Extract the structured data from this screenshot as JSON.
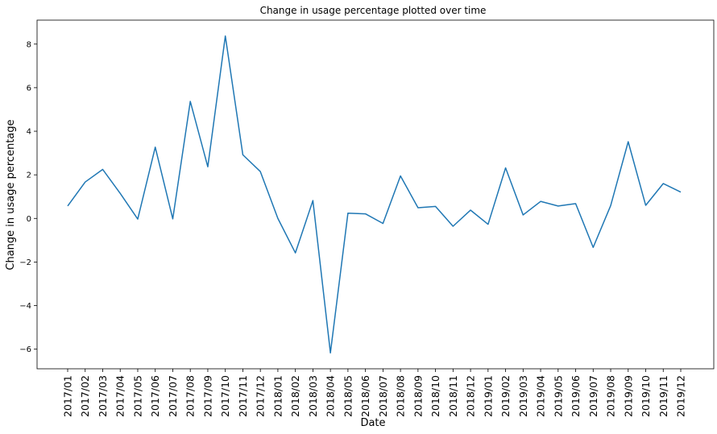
{
  "chart_data": {
    "type": "line",
    "title": "Change in usage percentage plotted over time",
    "xlabel": "Date",
    "ylabel": "Change in usage percentage",
    "ylim": [
      -6.9,
      9.1
    ],
    "yticks": [
      "−6",
      "−4",
      "−2",
      "0",
      "2",
      "4",
      "6",
      "8"
    ],
    "ytick_values": [
      -6,
      -4,
      -2,
      0,
      2,
      4,
      6,
      8
    ],
    "grid": false,
    "line_color": "#1f77b4",
    "categories": [
      "2017/01",
      "2017/02",
      "2017/03",
      "2017/04",
      "2017/05",
      "2017/06",
      "2017/07",
      "2017/08",
      "2017/09",
      "2017/10",
      "2017/11",
      "2017/12",
      "2018/01",
      "2018/02",
      "2018/03",
      "2018/04",
      "2018/05",
      "2018/06",
      "2018/07",
      "2018/08",
      "2018/09",
      "2018/10",
      "2018/11",
      "2018/12",
      "2019/01",
      "2019/02",
      "2019/03",
      "2019/04",
      "2019/05",
      "2019/06",
      "2019/07",
      "2019/08",
      "2019/09",
      "2019/10",
      "2019/11",
      "2019/12"
    ],
    "values": [
      0.57,
      1.67,
      2.25,
      1.15,
      -0.03,
      3.27,
      -0.02,
      5.37,
      2.37,
      8.37,
      2.92,
      2.15,
      0.0,
      -1.58,
      0.82,
      -6.17,
      0.24,
      0.21,
      -0.23,
      1.95,
      0.49,
      0.55,
      -0.36,
      0.38,
      -0.27,
      2.32,
      0.16,
      0.78,
      0.57,
      0.68,
      -1.33,
      0.59,
      3.52,
      0.6,
      1.6,
      1.21
    ]
  }
}
